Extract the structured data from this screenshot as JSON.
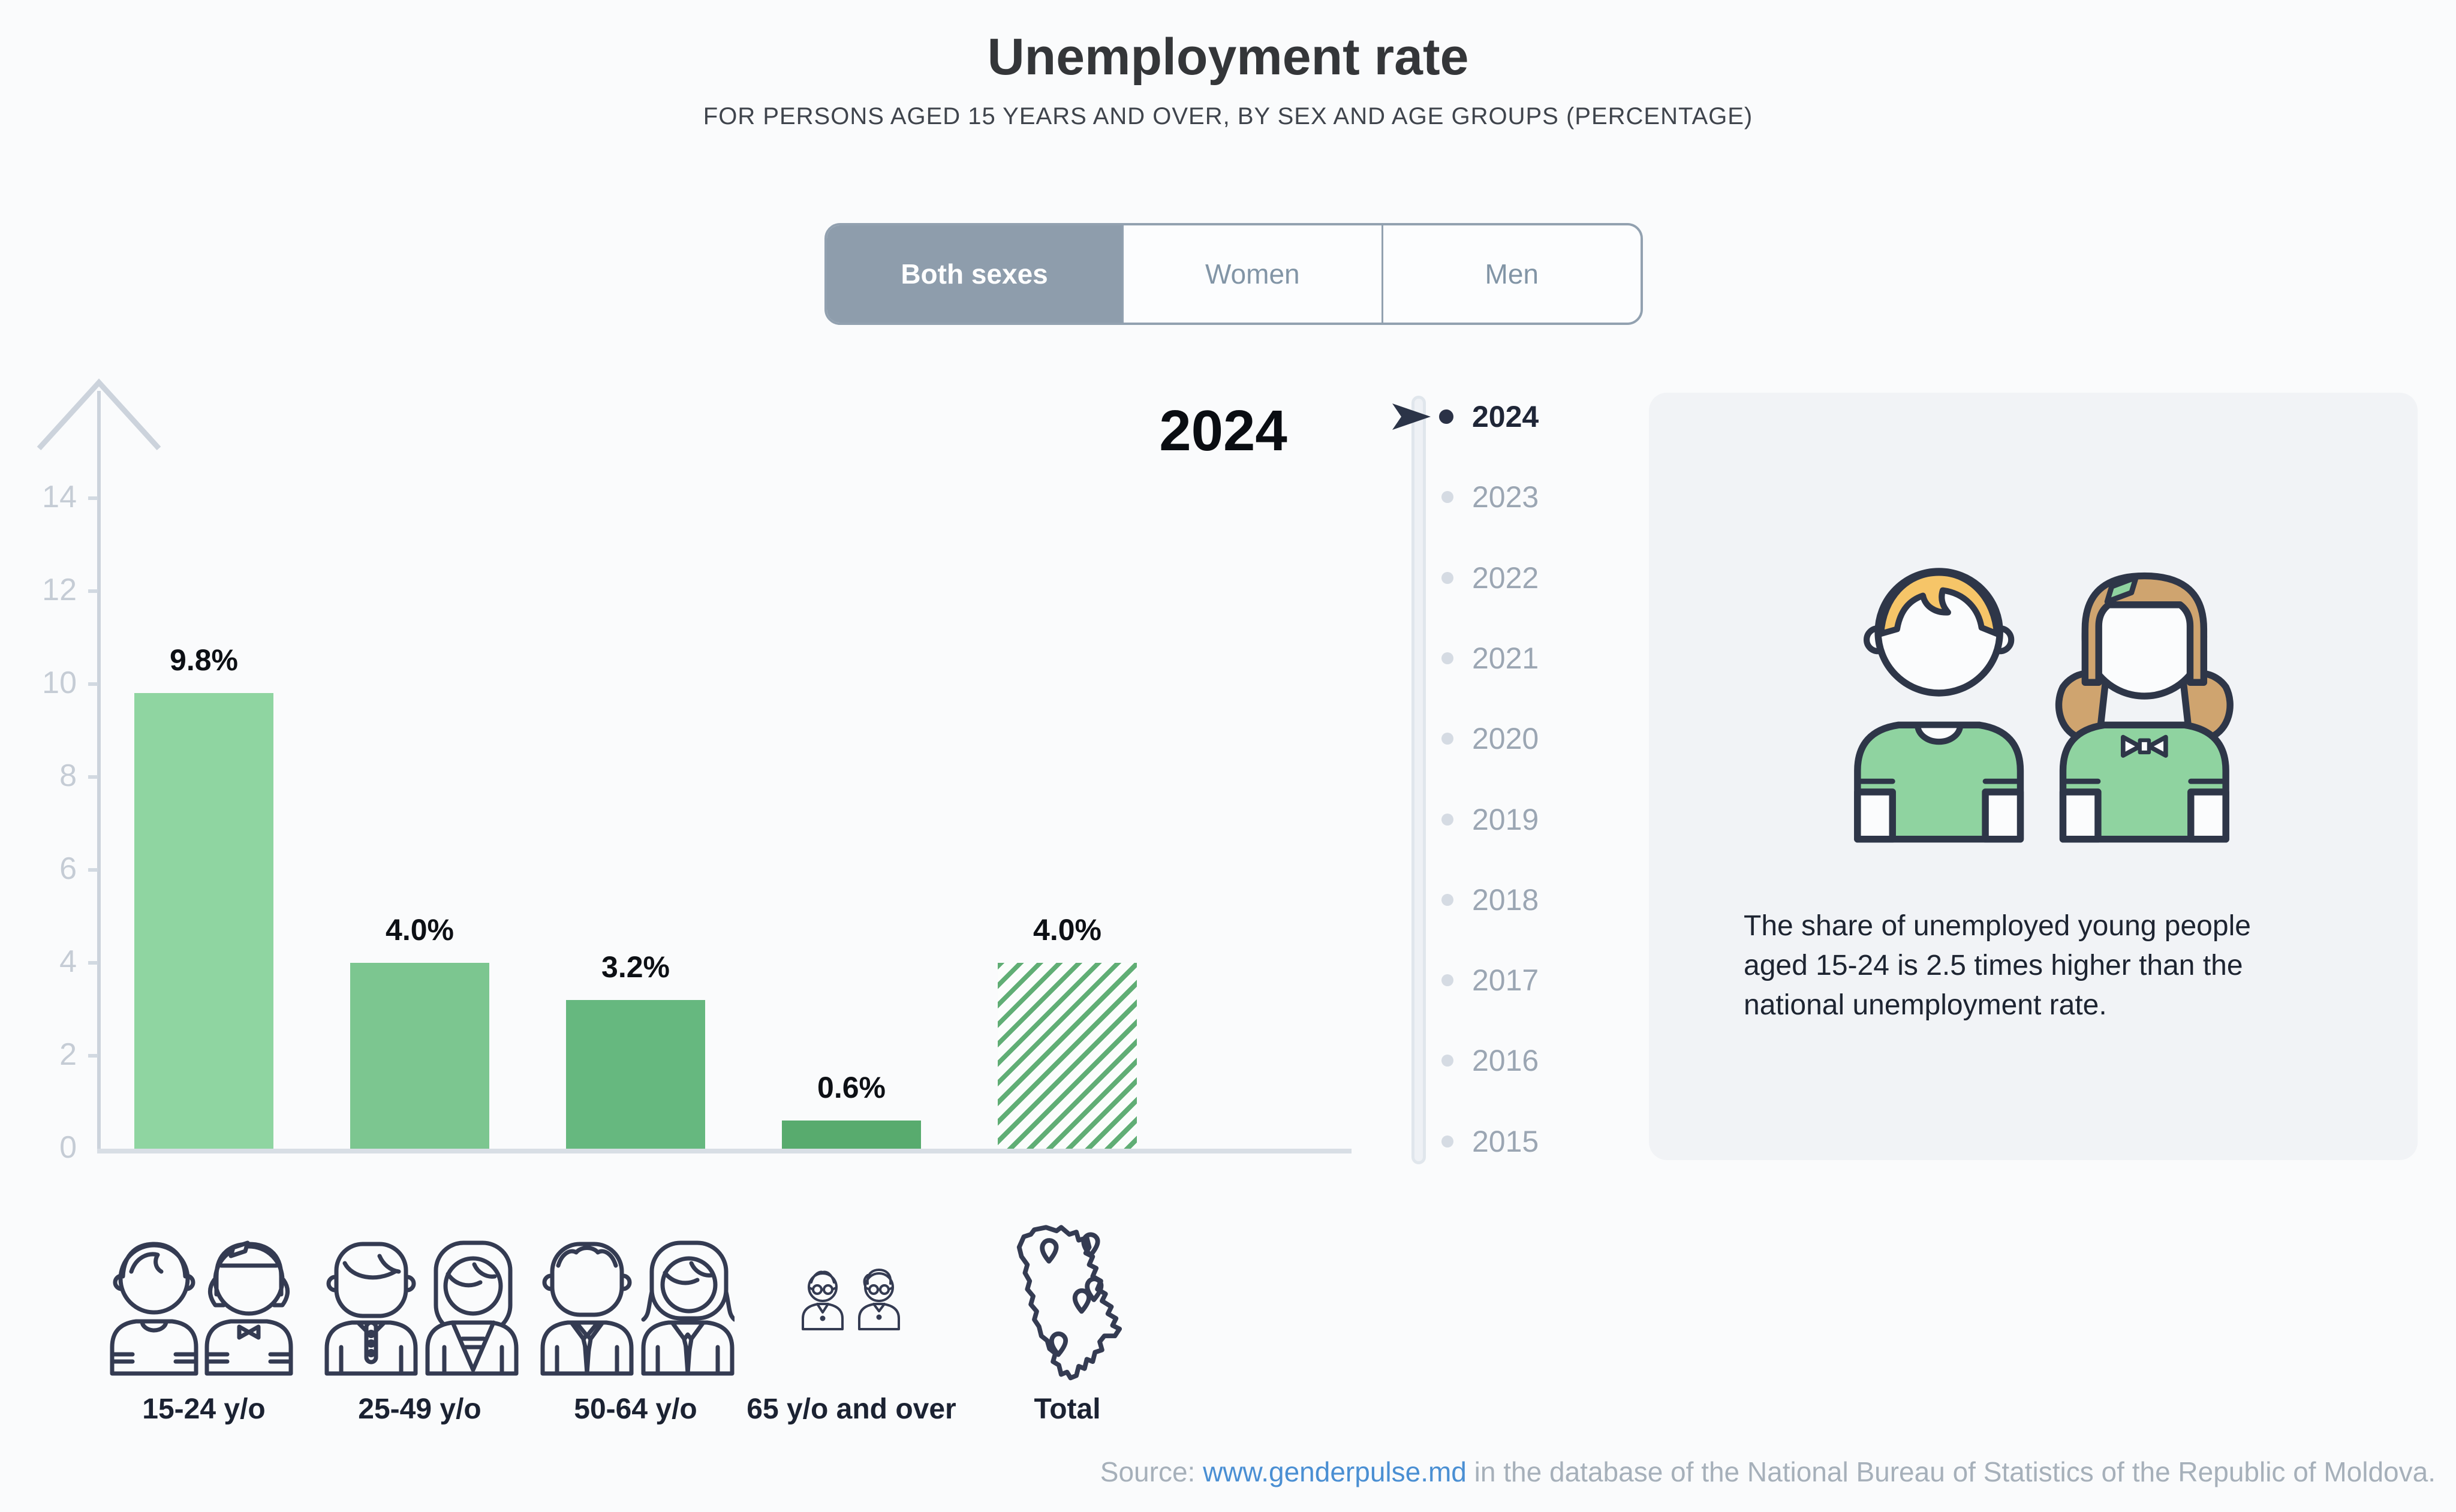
{
  "header": {
    "title": "Unemployment rate",
    "subtitle": "FOR PERSONS AGED 15 YEARS AND OVER, BY SEX AND AGE GROUPS (PERCENTAGE)"
  },
  "tabs": {
    "items": [
      {
        "label": "Both sexes",
        "active": true
      },
      {
        "label": "Women",
        "active": false
      },
      {
        "label": "Men",
        "active": false
      }
    ]
  },
  "chart_data": {
    "type": "bar",
    "title": "Unemployment rate",
    "subtitle": "For persons aged 15 years and over, by sex and age groups (percentage)",
    "year": "2024",
    "sex_filter": "Both sexes",
    "categories": [
      "15-24 y/o",
      "25-49 y/o",
      "50-64 y/o",
      "65 y/o and over",
      "Total"
    ],
    "values": [
      9.8,
      4.0,
      3.2,
      0.6,
      4.0
    ],
    "value_labels": [
      "9.8%",
      "4.0%",
      "3.2%",
      "0.6%",
      "4.0%"
    ],
    "unit": "%",
    "ylim": [
      0,
      15
    ],
    "yticks": [
      0,
      2,
      4,
      6,
      8,
      10,
      12,
      14
    ],
    "bar_styles": [
      "solid",
      "solid",
      "solid",
      "solid",
      "hatch"
    ],
    "grid": false,
    "legend_position": "none"
  },
  "timeline": {
    "years": [
      "2024",
      "2023",
      "2022",
      "2021",
      "2020",
      "2019",
      "2018",
      "2017",
      "2016",
      "2015"
    ],
    "selected": "2024"
  },
  "infobox": {
    "lines": [
      "The share of unemployed young people",
      "aged 15-24 is 2.5 times higher than the",
      "national unemployment rate."
    ]
  },
  "source": {
    "prefix": "Source: ",
    "link_text": "www.genderpulse.md",
    "suffix": " in the database of the National Bureau of Statistics of the Republic of Moldova."
  },
  "colors": {
    "background": "#fafbfc",
    "card": "#f1f3f6",
    "slate": "#8e9dac",
    "bar_colors": [
      "#8fd5a1",
      "#7cc690",
      "#66b87f",
      "#58ab6e"
    ],
    "hatch_green": "#60ae75",
    "axis": "#ccd3dc",
    "tick_label": "#c5ccd5",
    "year_inactive": "#9ba6b3",
    "year_active": "#1f2637",
    "navy": "#343b52",
    "link": "#4a8fd3",
    "text": "#1d2431"
  }
}
